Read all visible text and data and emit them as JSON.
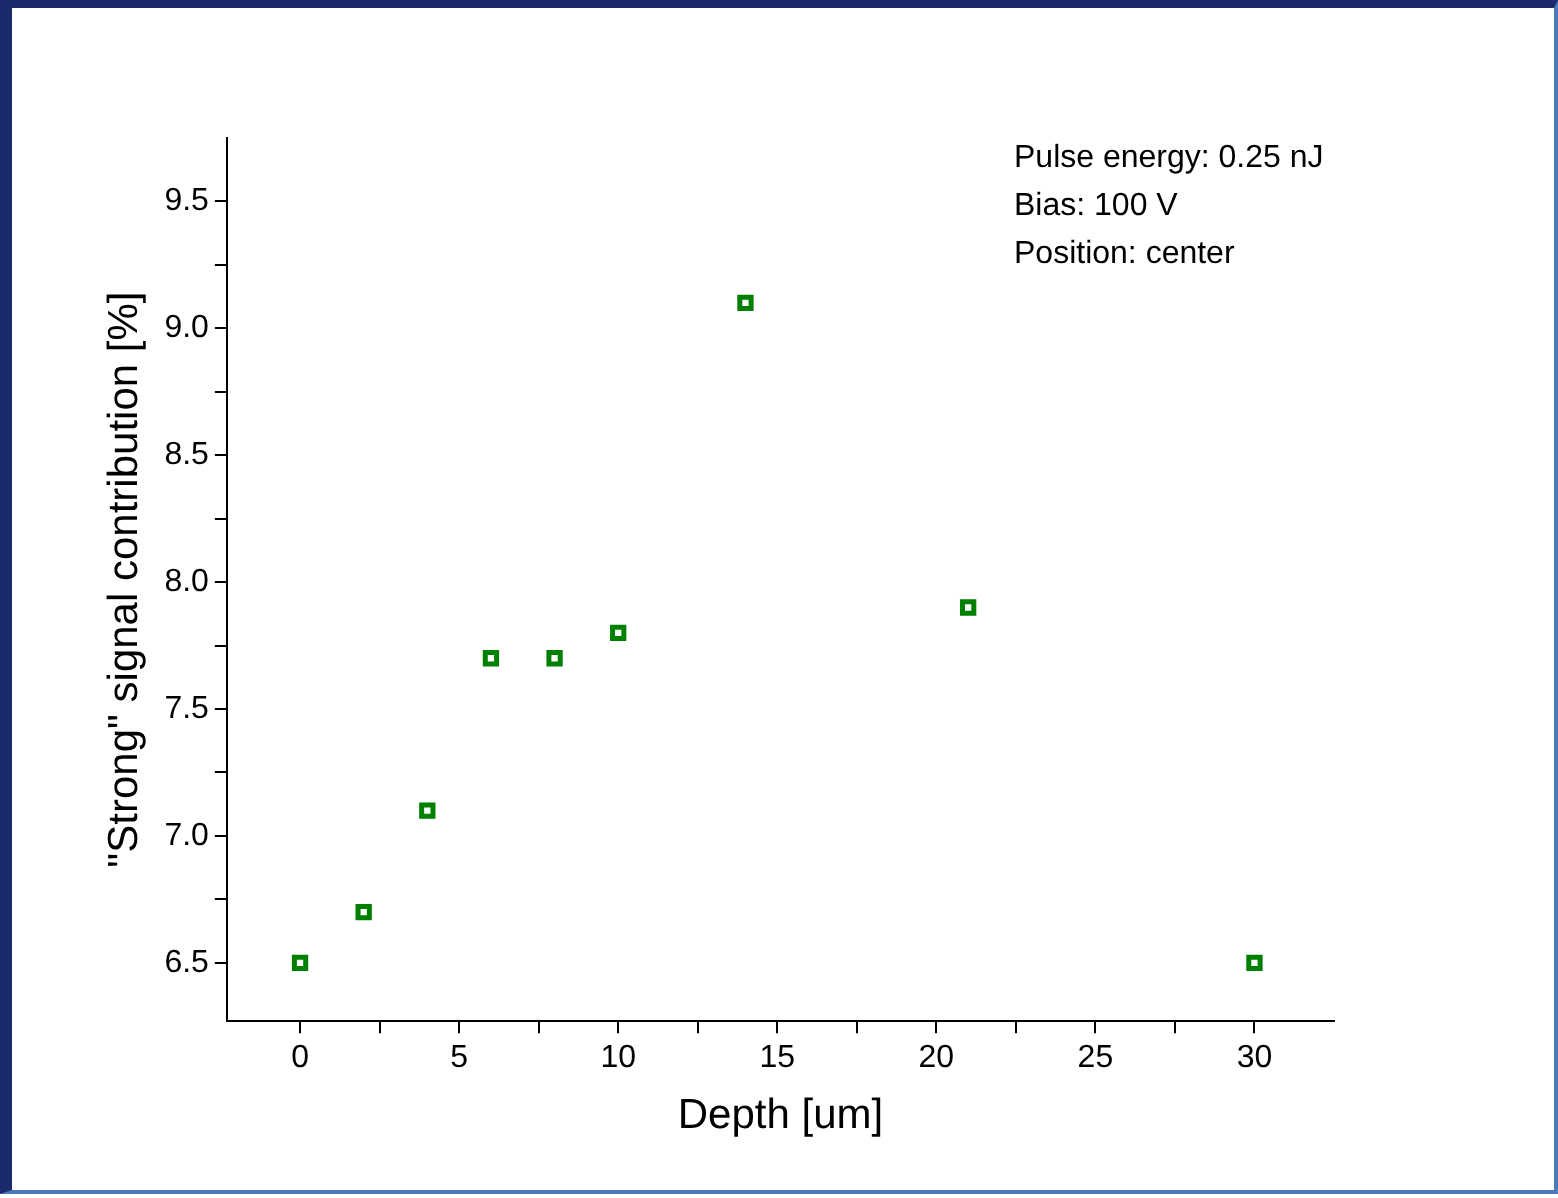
{
  "chart_data": {
    "type": "scatter",
    "xlabel": "Depth [um]",
    "ylabel": "\"Strong\" signal contribution [%]",
    "x": [
      0,
      2,
      4,
      6,
      8,
      10,
      14,
      21,
      30
    ],
    "series": [
      {
        "color": "#008000",
        "values": [
          6.5,
          6.7,
          7.1,
          7.7,
          7.7,
          7.8,
          9.1,
          7.9,
          6.5
        ]
      }
    ],
    "marker": "square",
    "grid": false,
    "legend": false,
    "xlim": [
      -2.3,
      32.5
    ],
    "xticks": [
      0,
      {
        "value": 2.5,
        "label": null
      },
      5,
      {
        "value": 7.5,
        "label": null
      },
      10,
      {
        "value": 12.5,
        "label": null
      },
      15,
      {
        "value": 17.5,
        "label": null
      },
      20,
      {
        "value": 22.5,
        "label": null
      },
      25,
      {
        "value": 27.5,
        "label": null
      },
      30
    ],
    "ylim": [
      6.27,
      9.75
    ],
    "yticks": [
      {
        "value": 6.5,
        "label": "6.5"
      },
      {
        "value": 6.75,
        "label": null
      },
      {
        "value": 7,
        "label": "7.0"
      },
      {
        "value": 7.25,
        "label": null
      },
      {
        "value": 7.5,
        "label": "7.5"
      },
      {
        "value": 7.75,
        "label": null
      },
      {
        "value": 8,
        "label": "8.0"
      },
      {
        "value": 8.25,
        "label": null
      },
      {
        "value": 8.5,
        "label": "8.5"
      },
      {
        "value": 8.75,
        "label": null
      },
      {
        "value": 9,
        "label": "9.0"
      },
      {
        "value": 9.25,
        "label": null
      },
      {
        "value": 9.5,
        "label": "9.5"
      }
    ],
    "annotations": [
      "Pulse energy: 0.25 nJ",
      "Bias: 100 V",
      "Position: center"
    ]
  }
}
